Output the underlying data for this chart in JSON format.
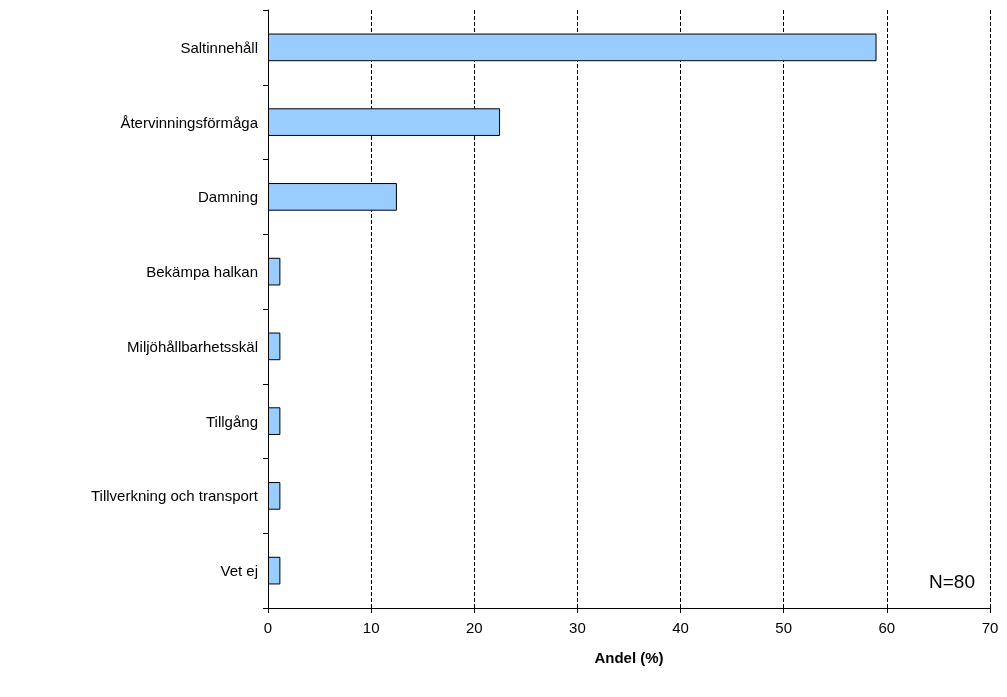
{
  "chart_data": {
    "type": "bar",
    "orientation": "horizontal",
    "categories": [
      "Saltinnehåll",
      "Återvinningsförmåga",
      "Damning",
      "Bekämpa halkan",
      "Miljöhållbarhetsskäl",
      "Tillgång",
      "Tillverkning och transport",
      "Vet ej"
    ],
    "values": [
      59,
      22.5,
      12.5,
      1.2,
      1.2,
      1.2,
      1.2,
      1.2
    ],
    "color": "#99ccff",
    "xlim": [
      0,
      70
    ],
    "xticks": [
      0,
      10,
      20,
      30,
      40,
      50,
      60,
      70
    ],
    "xlabel": "Andel (%)",
    "grid": "x",
    "annotations": [
      "N=80"
    ]
  }
}
